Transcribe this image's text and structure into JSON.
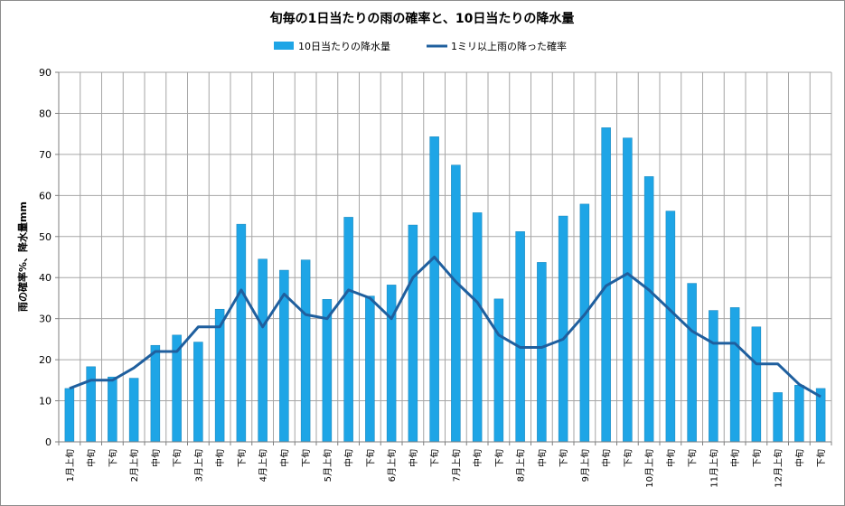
{
  "chart_data": {
    "type": "bar",
    "title": "旬毎の1日当たりの雨の確率と、10日当たりの降水量",
    "ylabel": "雨の確率%、降水量mm",
    "xlabel": "",
    "ylim": [
      0,
      90
    ],
    "yticks": [
      0,
      10,
      20,
      30,
      40,
      50,
      60,
      70,
      80,
      90
    ],
    "grid": true,
    "legend_position": "top",
    "categories": [
      "1月上旬",
      "中旬",
      "下旬",
      "2月上旬",
      "中旬",
      "下旬",
      "3月上旬",
      "中旬",
      "下旬",
      "4月上旬",
      "中旬",
      "下旬",
      "5月上旬",
      "中旬",
      "下旬",
      "6月上旬",
      "中旬",
      "下旬",
      "7月上旬",
      "中旬",
      "下旬",
      "8月上旬",
      "中旬",
      "下旬",
      "9月上旬",
      "中旬",
      "下旬",
      "10月上旬",
      "中旬",
      "下旬",
      "11月上旬",
      "中旬",
      "下旬",
      "12月上旬",
      "中旬",
      "下旬"
    ],
    "series": [
      {
        "name": "10日当たりの降水量",
        "kind": "bar",
        "color": "#1ea5e6",
        "values": [
          13,
          18.3,
          15.8,
          15.5,
          23.5,
          26,
          24.3,
          32.3,
          53,
          44.5,
          41.8,
          44.3,
          34.7,
          54.7,
          35.5,
          38.2,
          52.8,
          74.3,
          67.4,
          55.8,
          34.8,
          51.2,
          43.7,
          55,
          57.9,
          76.5,
          74,
          64.6,
          56.2,
          38.6,
          32,
          32.7,
          28,
          12,
          13.8,
          13
        ]
      },
      {
        "name": "1ミリ以上雨の降った確率",
        "kind": "line",
        "color": "#1f5f9e",
        "values": [
          13,
          15,
          15,
          18,
          22,
          22,
          28,
          28,
          37,
          28,
          36,
          31,
          30,
          37,
          35,
          30,
          40,
          45,
          39,
          34,
          26,
          23,
          23,
          25,
          31,
          38,
          41,
          37,
          32,
          27,
          24,
          24,
          19,
          19,
          14,
          11
        ]
      }
    ]
  }
}
